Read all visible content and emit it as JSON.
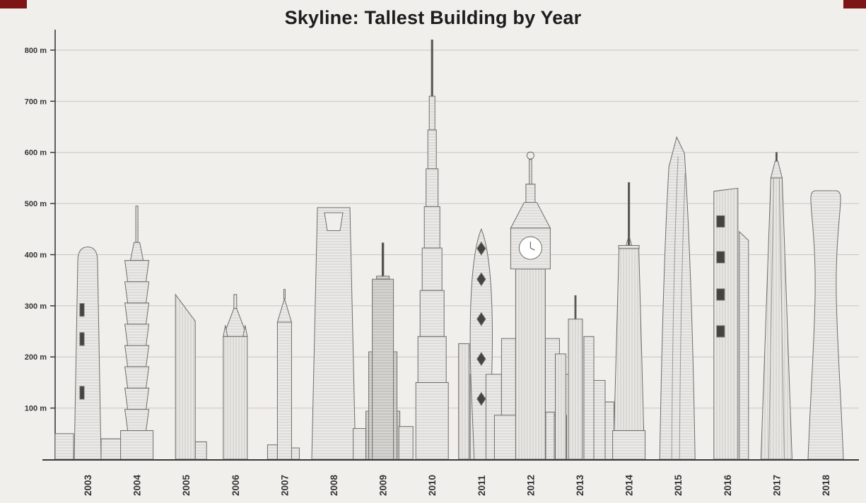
{
  "page": {
    "title": "Skyline: Tallest Building by Year"
  },
  "colors": {
    "background": "#f1efec",
    "gridline": "#c8c5c2",
    "axis": "#3a3a3a",
    "tick_text": "#333333",
    "corner_mark": "#7d1517",
    "building_fill": "#eceae7",
    "building_fill_dark": "#d7d5d2",
    "building_stroke": "#6e6d6a",
    "band_dark": "#44433f",
    "clock_face": "#ffffff"
  },
  "chart_data": {
    "type": "pictorial-bar",
    "title": "Skyline: Tallest Building by Year",
    "categories": [
      "2003",
      "2004",
      "2005",
      "2006",
      "2007",
      "2008",
      "2009",
      "2010",
      "2011",
      "2012",
      "2013",
      "2014",
      "2015",
      "2016",
      "2017",
      "2018"
    ],
    "values": [
      415,
      495,
      322,
      322,
      332,
      492,
      423,
      820,
      450,
      600,
      320,
      541,
      630,
      530,
      600,
      525
    ],
    "unit": "m",
    "ylabel_ticks": [
      "100 m",
      "200 m",
      "300 m",
      "400 m",
      "500 m",
      "600 m",
      "700 m",
      "800 m"
    ],
    "ytick_values": [
      100,
      200,
      300,
      400,
      500,
      600,
      700,
      800
    ],
    "ylim": [
      0,
      830
    ],
    "grid": true,
    "legend": "none",
    "xlabel": "",
    "ylabel": ""
  }
}
